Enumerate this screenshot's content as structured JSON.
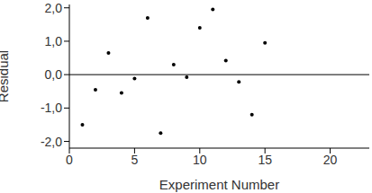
{
  "chart_data": {
    "type": "scatter",
    "x_label": "Experiment Number",
    "y_label": "Residual",
    "x": [
      1,
      2,
      3,
      4,
      5,
      6,
      7,
      8,
      9,
      10,
      11,
      12,
      13,
      14,
      15
    ],
    "values": [
      -1.5,
      -0.45,
      0.65,
      -0.55,
      -0.12,
      1.7,
      -1.75,
      0.3,
      -0.08,
      1.4,
      1.95,
      0.42,
      -0.22,
      -1.2,
      0.95
    ],
    "color": "#000000",
    "marker": "circle",
    "xlim": [
      0,
      23
    ],
    "xticks": [
      0,
      5,
      10,
      15,
      20
    ],
    "ylim": [
      -2.2,
      2.1
    ],
    "yticks": [
      {
        "value": -2,
        "label": "-2,0"
      },
      {
        "value": -1,
        "label": "-1,0"
      },
      {
        "value": 0,
        "label": "0,0"
      },
      {
        "value": 1,
        "label": "1,0"
      },
      {
        "value": 2,
        "label": "2,0"
      }
    ],
    "reference_lines": [
      0
    ],
    "grid": false
  }
}
